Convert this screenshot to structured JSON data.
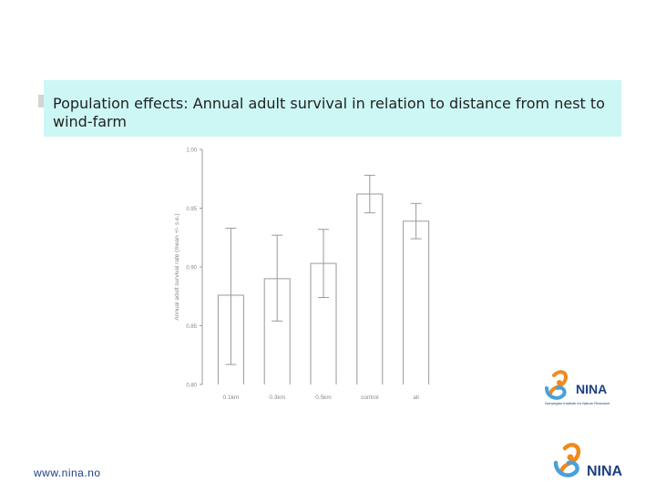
{
  "title": "Population effects: Annual adult survival in relation to distance from nest to wind-farm",
  "footer_url": "www.nina.no",
  "logo": {
    "text": "NINA",
    "subtitle": "Norwegian Institute for Nature Research",
    "colors": {
      "swirl_orange": "#f08a1c",
      "swirl_blue": "#4aa0d8",
      "text": "#1e3f82"
    }
  },
  "chart_data": {
    "type": "bar",
    "ylabel": "Annual adult survival rate (mean +/- s.e.)",
    "ylim": [
      0.8,
      1.0
    ],
    "yticks": [
      "0.80",
      "0.85",
      "0.90",
      "0.95",
      "1.00"
    ],
    "categories": [
      "0.1km",
      "0.3km",
      "0.5km",
      "control",
      "all"
    ],
    "values": [
      0.876,
      0.89,
      0.903,
      0.962,
      0.939
    ],
    "error_low": [
      0.817,
      0.854,
      0.874,
      0.946,
      0.924
    ],
    "error_high": [
      0.933,
      0.927,
      0.932,
      0.978,
      0.954
    ],
    "grid": false
  }
}
